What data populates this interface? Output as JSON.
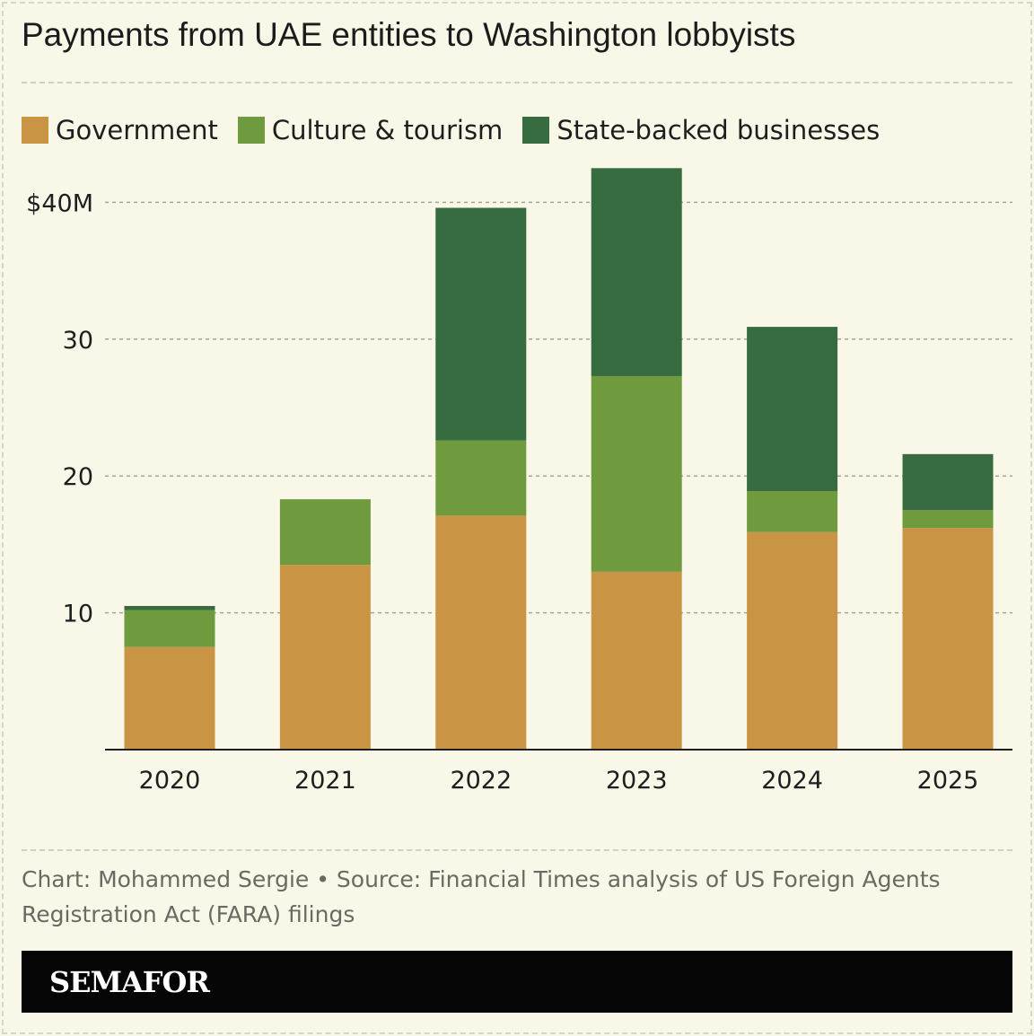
{
  "title": "Payments from UAE entities to Washington lobbyists",
  "legend": [
    {
      "label": "Government",
      "color": "#c99444"
    },
    {
      "label": "Culture & tourism",
      "color": "#6f9a3e"
    },
    {
      "label": "State-backed businesses",
      "color": "#376b40"
    }
  ],
  "chart_data": {
    "type": "bar",
    "stacked": true,
    "categories": [
      "2020",
      "2021",
      "2022",
      "2023",
      "2024",
      "2025"
    ],
    "series": [
      {
        "name": "Government",
        "color": "#c99444",
        "values": [
          7.5,
          13.5,
          17.1,
          13.0,
          15.9,
          16.2
        ]
      },
      {
        "name": "Culture & tourism",
        "color": "#6f9a3e",
        "values": [
          2.7,
          4.8,
          5.5,
          14.3,
          3.0,
          1.3
        ]
      },
      {
        "name": "State-backed businesses",
        "color": "#376b40",
        "values": [
          0.3,
          0,
          17.0,
          15.2,
          12.0,
          4.1
        ]
      }
    ],
    "ylim": [
      0,
      40
    ],
    "yticks": [
      {
        "value": 10,
        "label": "10"
      },
      {
        "value": 20,
        "label": "20"
      },
      {
        "value": 30,
        "label": "30"
      },
      {
        "value": 40,
        "label": "$40M"
      }
    ],
    "grid": true,
    "legend_position": "top-left",
    "xlabel": "",
    "ylabel": ""
  },
  "footer": {
    "credit": "Chart: Mohammed Sergie • Source: Financial Times analysis of US Foreign Agents Registration Act (FARA) filings"
  },
  "brand": {
    "name": "SEMAFOR"
  }
}
